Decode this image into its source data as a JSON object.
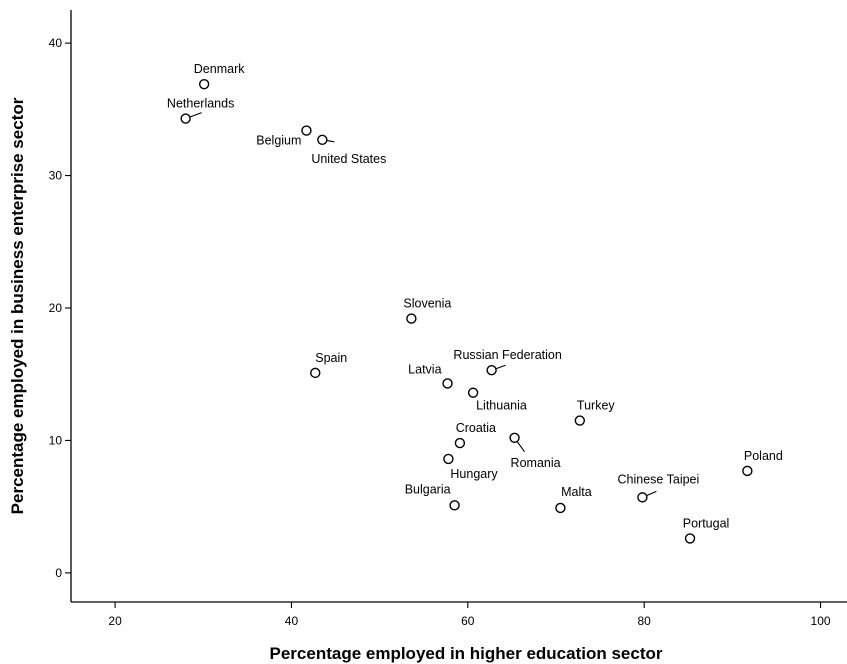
{
  "chart_data": {
    "type": "scatter",
    "xlabel": "Percentage employed in higher education sector",
    "ylabel": "Percentage employed in business enterprise sector",
    "xlim": [
      15,
      103
    ],
    "ylim": [
      -2.2,
      42.5
    ],
    "x_ticks": [
      20,
      40,
      60,
      80,
      100
    ],
    "y_ticks": [
      0,
      10,
      20,
      30,
      40
    ],
    "grid": false,
    "legend": "none",
    "points": [
      {
        "label": "Denmark",
        "x": 30.1,
        "y": 36.9
      },
      {
        "label": "Netherlands",
        "x": 28.0,
        "y": 34.3
      },
      {
        "label": "Belgium",
        "x": 41.7,
        "y": 33.4
      },
      {
        "label": "United States",
        "x": 43.5,
        "y": 32.7
      },
      {
        "label": "Slovenia",
        "x": 53.6,
        "y": 19.2
      },
      {
        "label": "Spain",
        "x": 42.7,
        "y": 15.1
      },
      {
        "label": "Russian Federation",
        "x": 62.7,
        "y": 15.3
      },
      {
        "label": "Latvia",
        "x": 57.7,
        "y": 14.3
      },
      {
        "label": "Lithuania",
        "x": 60.6,
        "y": 13.6
      },
      {
        "label": "Turkey",
        "x": 72.7,
        "y": 11.5
      },
      {
        "label": "Croatia",
        "x": 59.1,
        "y": 9.8
      },
      {
        "label": "Romania",
        "x": 65.3,
        "y": 10.2
      },
      {
        "label": "Hungary",
        "x": 57.8,
        "y": 8.6
      },
      {
        "label": "Poland",
        "x": 91.7,
        "y": 7.7
      },
      {
        "label": "Chinese Taipei",
        "x": 79.8,
        "y": 5.7
      },
      {
        "label": "Bulgaria",
        "x": 58.5,
        "y": 5.1
      },
      {
        "label": "Malta",
        "x": 70.5,
        "y": 4.9
      },
      {
        "label": "Portugal",
        "x": 85.2,
        "y": 2.6
      }
    ]
  }
}
